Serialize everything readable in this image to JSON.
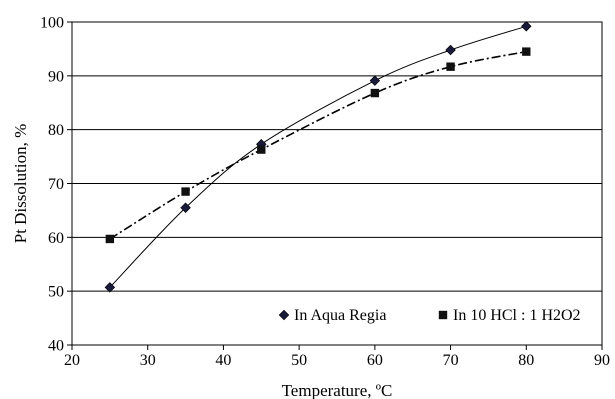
{
  "chart_data": {
    "type": "line",
    "xlabel": "Temperature, ºC",
    "ylabel": "Pt Dissolution, %",
    "xlim": [
      20,
      90
    ],
    "ylim": [
      40,
      100
    ],
    "x_ticks": [
      "20",
      "30",
      "40",
      "50",
      "60",
      "70",
      "80",
      "90"
    ],
    "y_ticks": [
      "40",
      "50",
      "60",
      "70",
      "80",
      "90",
      "100"
    ],
    "grid": "horizontal",
    "legend_position": "bottom-right",
    "series": [
      {
        "name": "In Aqua Regia",
        "marker": "diamond",
        "line_style": "solid",
        "color": "#1a1a3a",
        "x": [
          25,
          35,
          45,
          60,
          70,
          80
        ],
        "y": [
          50.7,
          65.5,
          77.3,
          89.1,
          94.8,
          99.2
        ]
      },
      {
        "name": "In 10 HCl : 1 H2O2",
        "marker": "square",
        "line_style": "dash-dot",
        "color": "#111111",
        "x": [
          25,
          35,
          45,
          60,
          70,
          80
        ],
        "y": [
          59.7,
          68.5,
          76.3,
          86.8,
          91.7,
          94.5
        ]
      }
    ]
  }
}
